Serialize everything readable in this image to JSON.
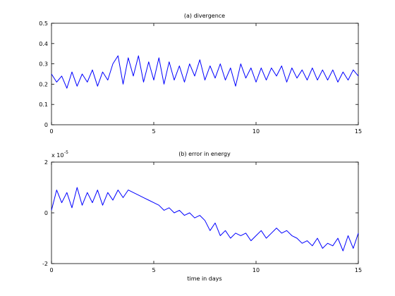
{
  "figure": {
    "xlabel": "time in days"
  },
  "chart_data": [
    {
      "type": "line",
      "title": "(a) divergence",
      "xlabel": "",
      "ylabel": "",
      "xlim": [
        0,
        15
      ],
      "ylim": [
        0,
        0.5
      ],
      "xticks": [
        0,
        5,
        10,
        15
      ],
      "yticks": [
        0,
        0.1,
        0.2,
        0.3,
        0.4,
        0.5
      ],
      "xtick_labels": [
        "0",
        "5",
        "10",
        "15"
      ],
      "ytick_labels": [
        "0",
        "0.1",
        "0.2",
        "0.3",
        "0.4",
        "0.5"
      ],
      "grid": false,
      "series": [
        {
          "color": "#0000ff",
          "x": [
            0,
            0.25,
            0.5,
            0.75,
            1,
            1.25,
            1.5,
            1.75,
            2,
            2.25,
            2.5,
            2.75,
            3,
            3.25,
            3.5,
            3.75,
            4,
            4.25,
            4.5,
            4.75,
            5,
            5.25,
            5.5,
            5.75,
            6,
            6.25,
            6.5,
            6.75,
            7,
            7.25,
            7.5,
            7.75,
            8,
            8.25,
            8.5,
            8.75,
            9,
            9.25,
            9.5,
            9.75,
            10,
            10.25,
            10.5,
            10.75,
            11,
            11.25,
            11.5,
            11.75,
            12,
            12.25,
            12.5,
            12.75,
            13,
            13.25,
            13.5,
            13.75,
            14,
            14.25,
            14.5,
            14.75,
            15
          ],
          "y": [
            0.25,
            0.21,
            0.24,
            0.18,
            0.26,
            0.19,
            0.25,
            0.21,
            0.27,
            0.19,
            0.26,
            0.22,
            0.3,
            0.34,
            0.2,
            0.33,
            0.24,
            0.34,
            0.21,
            0.31,
            0.22,
            0.33,
            0.2,
            0.31,
            0.22,
            0.29,
            0.21,
            0.3,
            0.24,
            0.32,
            0.22,
            0.29,
            0.23,
            0.3,
            0.22,
            0.28,
            0.19,
            0.3,
            0.23,
            0.28,
            0.21,
            0.28,
            0.22,
            0.28,
            0.24,
            0.29,
            0.21,
            0.28,
            0.23,
            0.27,
            0.22,
            0.28,
            0.22,
            0.27,
            0.22,
            0.27,
            0.21,
            0.26,
            0.22,
            0.27,
            0.24
          ]
        }
      ]
    },
    {
      "type": "line",
      "title": "(b) error in energy",
      "xlabel": "time in days",
      "ylabel": "",
      "multiplier_base": "x 10",
      "multiplier_exp": "-5",
      "xlim": [
        0,
        15
      ],
      "ylim": [
        -2,
        2
      ],
      "xticks": [
        0,
        5,
        10,
        15
      ],
      "yticks": [
        -2,
        0,
        2
      ],
      "xtick_labels": [
        "0",
        "5",
        "10",
        "15"
      ],
      "ytick_labels": [
        "-2",
        "0",
        "2"
      ],
      "grid": false,
      "series": [
        {
          "color": "#0000ff",
          "x": [
            0,
            0.25,
            0.5,
            0.75,
            1,
            1.25,
            1.5,
            1.75,
            2,
            2.25,
            2.5,
            2.75,
            3,
            3.25,
            3.5,
            3.75,
            4,
            4.25,
            4.5,
            4.75,
            5,
            5.25,
            5.5,
            5.75,
            6,
            6.25,
            6.5,
            6.75,
            7,
            7.25,
            7.5,
            7.75,
            8,
            8.25,
            8.5,
            8.75,
            9,
            9.25,
            9.5,
            9.75,
            10,
            10.25,
            10.5,
            10.75,
            11,
            11.25,
            11.5,
            11.75,
            12,
            12.25,
            12.5,
            12.75,
            13,
            13.25,
            13.5,
            13.75,
            14,
            14.25,
            14.5,
            14.75,
            15
          ],
          "y": [
            0.1,
            0.9,
            0.4,
            0.8,
            0.2,
            1.0,
            0.3,
            0.8,
            0.4,
            0.9,
            0.3,
            0.8,
            0.5,
            0.9,
            0.6,
            0.9,
            0.8,
            0.7,
            0.6,
            0.5,
            0.4,
            0.3,
            0.1,
            0.2,
            0.0,
            0.1,
            -0.1,
            0.0,
            -0.2,
            -0.1,
            -0.3,
            -0.7,
            -0.4,
            -0.9,
            -0.7,
            -1.0,
            -0.8,
            -0.9,
            -0.8,
            -1.1,
            -0.9,
            -0.7,
            -1.0,
            -0.8,
            -0.6,
            -0.8,
            -0.7,
            -0.9,
            -1.0,
            -1.2,
            -1.1,
            -1.3,
            -1.0,
            -1.4,
            -1.2,
            -1.3,
            -1.0,
            -1.5,
            -0.9,
            -1.4,
            -0.8
          ]
        }
      ]
    }
  ]
}
